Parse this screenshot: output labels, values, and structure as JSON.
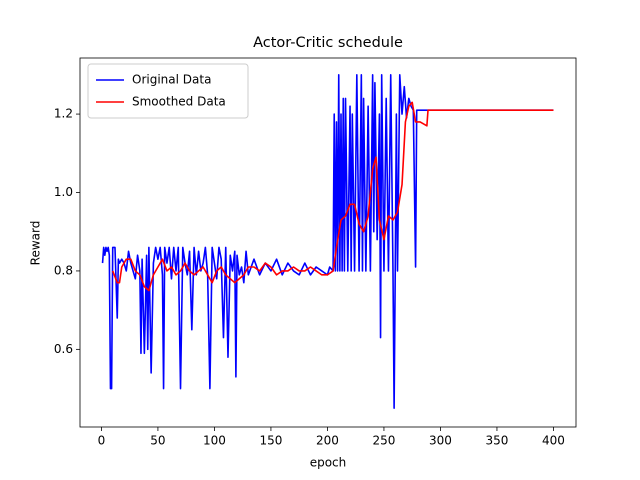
{
  "chart_data": {
    "type": "line",
    "title": "Actor-Critic schedule",
    "x_label": "epoch",
    "y_label": "Reward",
    "xlim": [
      -18.95,
      419.95
    ],
    "ylim": [
      0.402,
      1.343
    ],
    "xticks": [
      0,
      50,
      100,
      150,
      200,
      250,
      300,
      350,
      400
    ],
    "yticks": [
      0.6,
      0.8,
      {
        "value": 1,
        "label": "1.0"
      },
      1.2
    ],
    "legend": "upper left",
    "series": [
      {
        "name": "Original Data",
        "color": "#0000ff",
        "x": [
          1,
          2,
          3,
          4,
          5,
          6,
          7,
          8,
          9,
          10,
          12,
          14,
          15,
          16,
          18,
          20,
          22,
          24,
          26,
          28,
          30,
          32,
          34,
          35,
          36,
          38,
          40,
          41,
          42,
          44,
          46,
          48,
          50,
          52,
          54,
          55,
          56,
          58,
          60,
          62,
          64,
          66,
          68,
          70,
          72,
          74,
          76,
          78,
          80,
          82,
          84,
          86,
          88,
          90,
          92,
          94,
          96,
          98,
          100,
          102,
          104,
          106,
          108,
          110,
          112,
          114,
          116,
          118,
          119,
          120,
          122,
          124,
          126,
          128,
          130,
          135,
          140,
          145,
          150,
          155,
          160,
          165,
          170,
          175,
          180,
          185,
          190,
          195,
          200,
          202,
          205,
          206,
          207,
          208,
          209,
          210,
          211,
          212,
          213,
          214,
          215,
          216,
          218,
          220,
          221,
          222,
          224,
          226,
          228,
          230,
          231,
          232,
          234,
          236,
          238,
          240,
          241,
          242,
          244,
          246,
          247,
          248,
          250,
          252,
          254,
          256,
          258,
          259,
          260,
          261,
          262,
          264,
          266,
          268,
          270,
          272,
          274,
          276,
          278,
          279,
          280,
          400
        ],
        "values": [
          0.82,
          0.86,
          0.84,
          0.86,
          0.85,
          0.86,
          0.84,
          0.5,
          0.5,
          0.86,
          0.86,
          0.68,
          0.83,
          0.82,
          0.83,
          0.82,
          0.8,
          0.85,
          0.82,
          0.8,
          0.78,
          0.84,
          0.8,
          0.59,
          0.83,
          0.59,
          0.84,
          0.6,
          0.86,
          0.54,
          0.82,
          0.86,
          0.83,
          0.86,
          0.79,
          0.5,
          0.86,
          0.82,
          0.86,
          0.78,
          0.86,
          0.8,
          0.86,
          0.5,
          0.86,
          0.82,
          0.79,
          0.85,
          0.65,
          0.86,
          0.79,
          0.85,
          0.8,
          0.82,
          0.86,
          0.79,
          0.5,
          0.86,
          0.82,
          0.78,
          0.86,
          0.83,
          0.63,
          0.86,
          0.58,
          0.84,
          0.8,
          0.85,
          0.53,
          0.84,
          0.79,
          0.81,
          0.77,
          0.85,
          0.79,
          0.83,
          0.79,
          0.82,
          0.8,
          0.83,
          0.79,
          0.82,
          0.8,
          0.79,
          0.82,
          0.79,
          0.81,
          0.8,
          0.79,
          0.81,
          0.8,
          1.2,
          0.8,
          1.18,
          0.8,
          1.3,
          0.8,
          1.2,
          0.8,
          1.24,
          0.8,
          1.24,
          0.8,
          1.22,
          0.8,
          1.2,
          0.8,
          1.3,
          0.8,
          1.3,
          0.8,
          1.24,
          0.8,
          1.22,
          0.8,
          1.3,
          0.9,
          1.28,
          0.88,
          1.2,
          0.63,
          1.3,
          0.8,
          1.24,
          0.8,
          1.3,
          0.8,
          0.45,
          0.8,
          1.2,
          0.8,
          1.3,
          1.2,
          1.27,
          1.19,
          1.24,
          1.22,
          1.21,
          0.81,
          1.21,
          1.21,
          1.21
        ]
      },
      {
        "name": "Smoothed Data",
        "color": "#ff0000",
        "x": [
          10,
          14,
          16,
          18,
          22,
          26,
          30,
          34,
          38,
          42,
          46,
          50,
          54,
          58,
          62,
          66,
          70,
          74,
          78,
          82,
          86,
          90,
          94,
          98,
          102,
          106,
          110,
          114,
          118,
          122,
          126,
          130,
          135,
          140,
          145,
          150,
          155,
          160,
          165,
          170,
          175,
          180,
          185,
          190,
          195,
          200,
          205,
          208,
          212,
          216,
          220,
          224,
          228,
          232,
          236,
          240,
          243,
          246,
          250,
          254,
          258,
          262,
          266,
          269,
          272,
          275,
          278,
          282,
          288,
          289,
          400
        ],
        "values": [
          0.8,
          0.77,
          0.77,
          0.81,
          0.83,
          0.83,
          0.8,
          0.79,
          0.76,
          0.75,
          0.79,
          0.81,
          0.83,
          0.8,
          0.81,
          0.79,
          0.8,
          0.82,
          0.8,
          0.79,
          0.8,
          0.81,
          0.79,
          0.77,
          0.8,
          0.81,
          0.79,
          0.78,
          0.77,
          0.78,
          0.79,
          0.81,
          0.81,
          0.8,
          0.82,
          0.81,
          0.79,
          0.8,
          0.8,
          0.81,
          0.8,
          0.8,
          0.81,
          0.8,
          0.79,
          0.79,
          0.8,
          0.86,
          0.93,
          0.94,
          0.97,
          0.97,
          0.92,
          0.9,
          0.94,
          1.06,
          1.09,
          0.93,
          0.88,
          0.94,
          0.93,
          0.95,
          1.02,
          1.18,
          1.22,
          1.23,
          1.18,
          1.18,
          1.17,
          1.21,
          1.21
        ]
      }
    ]
  }
}
